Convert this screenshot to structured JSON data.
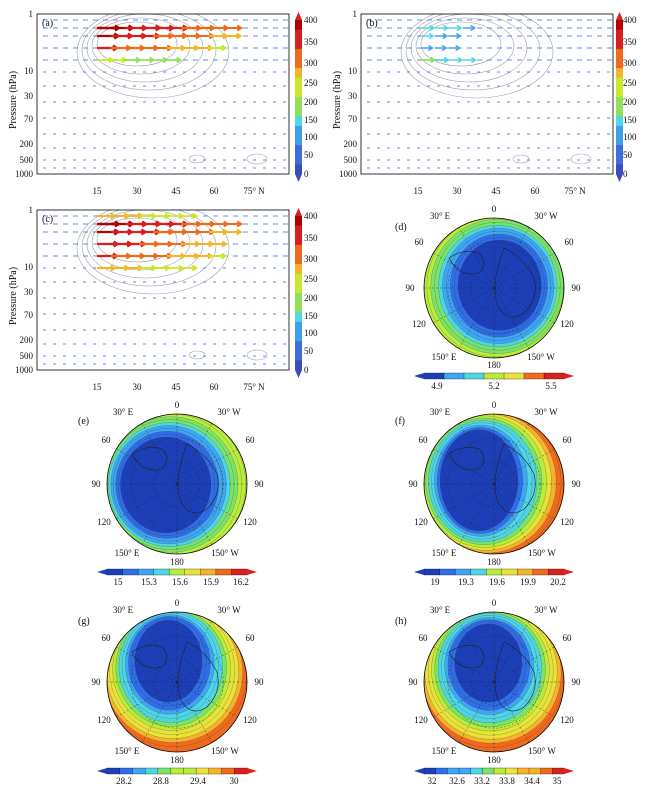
{
  "colors": {
    "vectors": [
      "#3b4cc0",
      "#3f6de0",
      "#3fa0f0",
      "#4fd8e8",
      "#8fe05a",
      "#c8e82a",
      "#f5b52a",
      "#f06a1e",
      "#d81e1e",
      "#b00000"
    ],
    "contour": "#a0a0a0",
    "frame": "#000000",
    "ocean_low": "#1f4fd0",
    "ocean_mid": "#3fa0f0",
    "high": "#f06a1e"
  },
  "chart_data": [
    {
      "id": "a",
      "type": "vector-contour",
      "label": "(a)",
      "ylabel": "Pressure (hPa)",
      "y_ticks": [
        "1",
        "10",
        "30",
        "70",
        "200",
        "500",
        "1000"
      ],
      "x_ticks": [
        "15",
        "30",
        "45",
        "60",
        "75° N"
      ],
      "colorbar": [
        "400",
        "350",
        "300",
        "250",
        "200",
        "150",
        "100",
        "50",
        "0"
      ],
      "jet_levels": [
        1,
        2,
        3,
        4
      ],
      "jet_strength": [
        1.0,
        0.95,
        0.85,
        0.55
      ]
    },
    {
      "id": "b",
      "type": "vector-contour",
      "label": "(b)",
      "ylabel": "Pressure (hPa)",
      "y_ticks": [
        "1",
        "10",
        "30",
        "70",
        "200",
        "500",
        "1000"
      ],
      "x_ticks": [
        "15",
        "30",
        "45",
        "60",
        "75° N"
      ],
      "colorbar": [
        "400",
        "350",
        "300",
        "250",
        "200",
        "150",
        "100",
        "50",
        "0"
      ],
      "jet_levels": [
        1,
        2,
        3,
        4
      ],
      "jet_strength": [
        0.35,
        0.3,
        0.25,
        0.4
      ]
    },
    {
      "id": "c",
      "type": "vector-contour",
      "label": "(c)",
      "ylabel": "Pressure (hPa)",
      "y_ticks": [
        "1",
        "10",
        "30",
        "70",
        "200",
        "500",
        "1000"
      ],
      "x_ticks": [
        "15",
        "30",
        "45",
        "60",
        "75° N"
      ],
      "colorbar": [
        "400",
        "350",
        "300",
        "250",
        "200",
        "150",
        "100",
        "50",
        "0"
      ],
      "jet_levels": [
        0,
        1,
        2,
        3,
        4,
        5
      ],
      "jet_strength": [
        0.7,
        1.0,
        0.95,
        0.9,
        0.85,
        0.7
      ]
    },
    {
      "id": "d",
      "type": "polar-map",
      "label": "(d)",
      "lon_labels": [
        "0",
        "30° E",
        "30° W",
        "60",
        "60",
        "90",
        "90",
        "120",
        "120",
        "150° E",
        "150° W",
        "180"
      ],
      "colorbar_labels": [
        "4.9",
        "5.2",
        "5.5"
      ],
      "levels": 10,
      "range": [
        4.8,
        5.7
      ]
    },
    {
      "id": "e",
      "type": "polar-map",
      "label": "(e)",
      "lon_labels": [
        "0",
        "30° E",
        "30° W",
        "60",
        "60",
        "90",
        "90",
        "120",
        "120",
        "150° E",
        "150° W",
        "180"
      ],
      "colorbar_labels": [
        "15",
        "15.3",
        "15.6",
        "15.9",
        "16.2"
      ],
      "levels": 10,
      "range": [
        14.9,
        16.3
      ]
    },
    {
      "id": "f",
      "type": "polar-map",
      "label": "(f)",
      "lon_labels": [
        "0",
        "30° E",
        "30° W",
        "60",
        "60",
        "90",
        "90",
        "120",
        "120",
        "150° E",
        "150° W",
        "180"
      ],
      "colorbar_labels": [
        "19",
        "19.3",
        "19.6",
        "19.9",
        "20.2"
      ],
      "levels": 10,
      "range": [
        18.9,
        20.3
      ]
    },
    {
      "id": "g",
      "type": "polar-map",
      "label": "(g)",
      "lon_labels": [
        "0",
        "30° E",
        "30° W",
        "60",
        "60",
        "90",
        "90",
        "120",
        "120",
        "150° E",
        "150° W",
        "180"
      ],
      "colorbar_labels": [
        "28.2",
        "28.8",
        "29.4",
        "30"
      ],
      "levels": 12,
      "range": [
        28.0,
        30.3
      ]
    },
    {
      "id": "h",
      "type": "polar-map",
      "label": "(h)",
      "lon_labels": [
        "0",
        "30° E",
        "30° W",
        "60",
        "60",
        "90",
        "90",
        "120",
        "120",
        "150° E",
        "150° W",
        "180"
      ],
      "colorbar_labels": [
        "32",
        "32.6",
        "33.2",
        "33.8",
        "34.4",
        "35"
      ],
      "levels": 12,
      "range": [
        31.8,
        35.2
      ]
    }
  ]
}
